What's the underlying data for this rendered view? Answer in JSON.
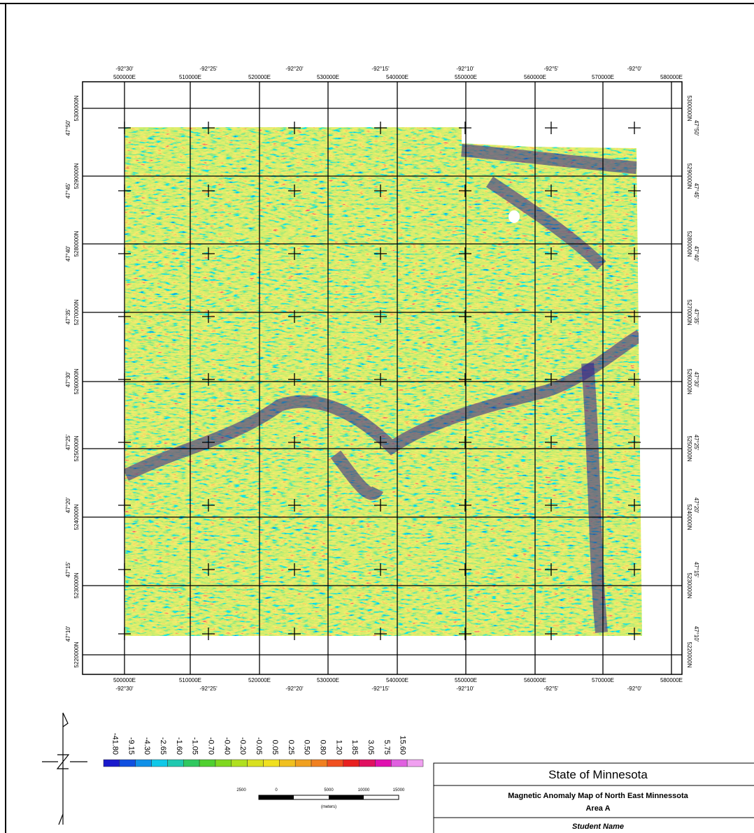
{
  "map": {
    "top_lon_labels": [
      "-92°30'",
      "-92°25'",
      "-92°20'",
      "-92°15'",
      "-92°10'",
      "-92°5'",
      "-92°0'"
    ],
    "eastings": [
      "500000E",
      "510000E",
      "520000E",
      "530000E",
      "540000E",
      "550000E",
      "560000E",
      "570000E",
      "580000E"
    ],
    "lat_labels": [
      "47°50'",
      "47°45'",
      "47°40'",
      "47°35'",
      "47°30'",
      "47°25'",
      "47°20'",
      "47°15'",
      "47°10'"
    ],
    "northings": [
      "5300000N",
      "5290000N",
      "5280000N",
      "5270000N",
      "5260000N",
      "5250000N",
      "5240000N",
      "5230000N",
      "5220000N"
    ]
  },
  "legend": {
    "labels": [
      "-41.80",
      "-9.15",
      "-4.30",
      "-2.65",
      "-1.60",
      "-1.05",
      "-0.70",
      "-0.40",
      "-0.20",
      "-0.05",
      "0.05",
      "0.25",
      "0.50",
      "0.80",
      "1.20",
      "1.85",
      "3.05",
      "5.75",
      "15.60"
    ]
  },
  "scale_bar": {
    "labels": [
      "2500",
      "0",
      "5000",
      "10000",
      "15000"
    ],
    "unit": "(meters)"
  },
  "title_block": {
    "state": "State of Minnesota",
    "title": "Magnetic Anomaly Map of North East Minnessota",
    "area": "Area A",
    "author": "Student Name"
  }
}
